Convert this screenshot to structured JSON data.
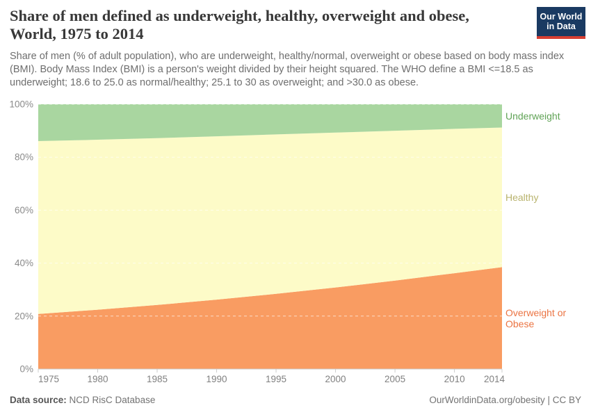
{
  "header": {
    "title_line1": "Share of men defined as underweight, healthy, overweight and obese,",
    "title_line2": "World, 1975 to 2014",
    "subtitle": "Share of men (% of adult population), who are underweight, healthy/normal, overweight or obese based on body mass index (BMI). Body Mass Index (BMI) is a person's weight divided by their height squared. The WHO define a BMI <=18.5 as underweight; 18.6 to 25.0 as normal/healthy; 25.1 to 30 as overweight; and >30.0 as obese."
  },
  "logo": {
    "line1": "Our World",
    "line2": "in Data",
    "bg_color": "#1a3a62",
    "stripe_color": "#d73f32"
  },
  "chart_data": {
    "type": "area",
    "stacked": true,
    "title": "Share of men defined as underweight, healthy, overweight and obese, World, 1975 to 2014",
    "x": [
      1975,
      1980,
      1985,
      1990,
      1995,
      2000,
      2005,
      2010,
      2014
    ],
    "x_ticks": [
      1975,
      1980,
      1985,
      1990,
      1995,
      2000,
      2005,
      2010,
      2014
    ],
    "x_range": [
      1975,
      2014
    ],
    "y_range": [
      0,
      100
    ],
    "y_ticks": [
      0,
      20,
      40,
      60,
      80,
      100
    ],
    "y_unit": "%",
    "grid": "dashed-horizontal",
    "legend_position": "labels-right-of-plot",
    "series": [
      {
        "name": "Underweight",
        "color": "#a9d6a0",
        "label_color": "#60a356",
        "values": [
          13.9,
          13.4,
          12.8,
          12.1,
          11.4,
          10.7,
          10.0,
          9.3,
          8.8
        ]
      },
      {
        "name": "Healthy",
        "color": "#fdfbc8",
        "label_color": "#b8b36d",
        "values": [
          65.3,
          64.2,
          63.0,
          61.7,
          60.2,
          58.5,
          56.6,
          54.5,
          52.7
        ]
      },
      {
        "name": "Overweight or Obese",
        "color": "#f99c62",
        "label_color": "#eb7443",
        "values": [
          20.8,
          22.4,
          24.2,
          26.2,
          28.4,
          30.8,
          33.4,
          36.2,
          38.5
        ]
      }
    ]
  },
  "axis": {
    "y_tick_labels": [
      "0%",
      "20%",
      "40%",
      "60%",
      "80%",
      "100%"
    ]
  },
  "footer": {
    "source_label": "Data source:",
    "source_value": "NCD RisC Database",
    "license": "OurWorldinData.org/obesity | CC BY"
  }
}
